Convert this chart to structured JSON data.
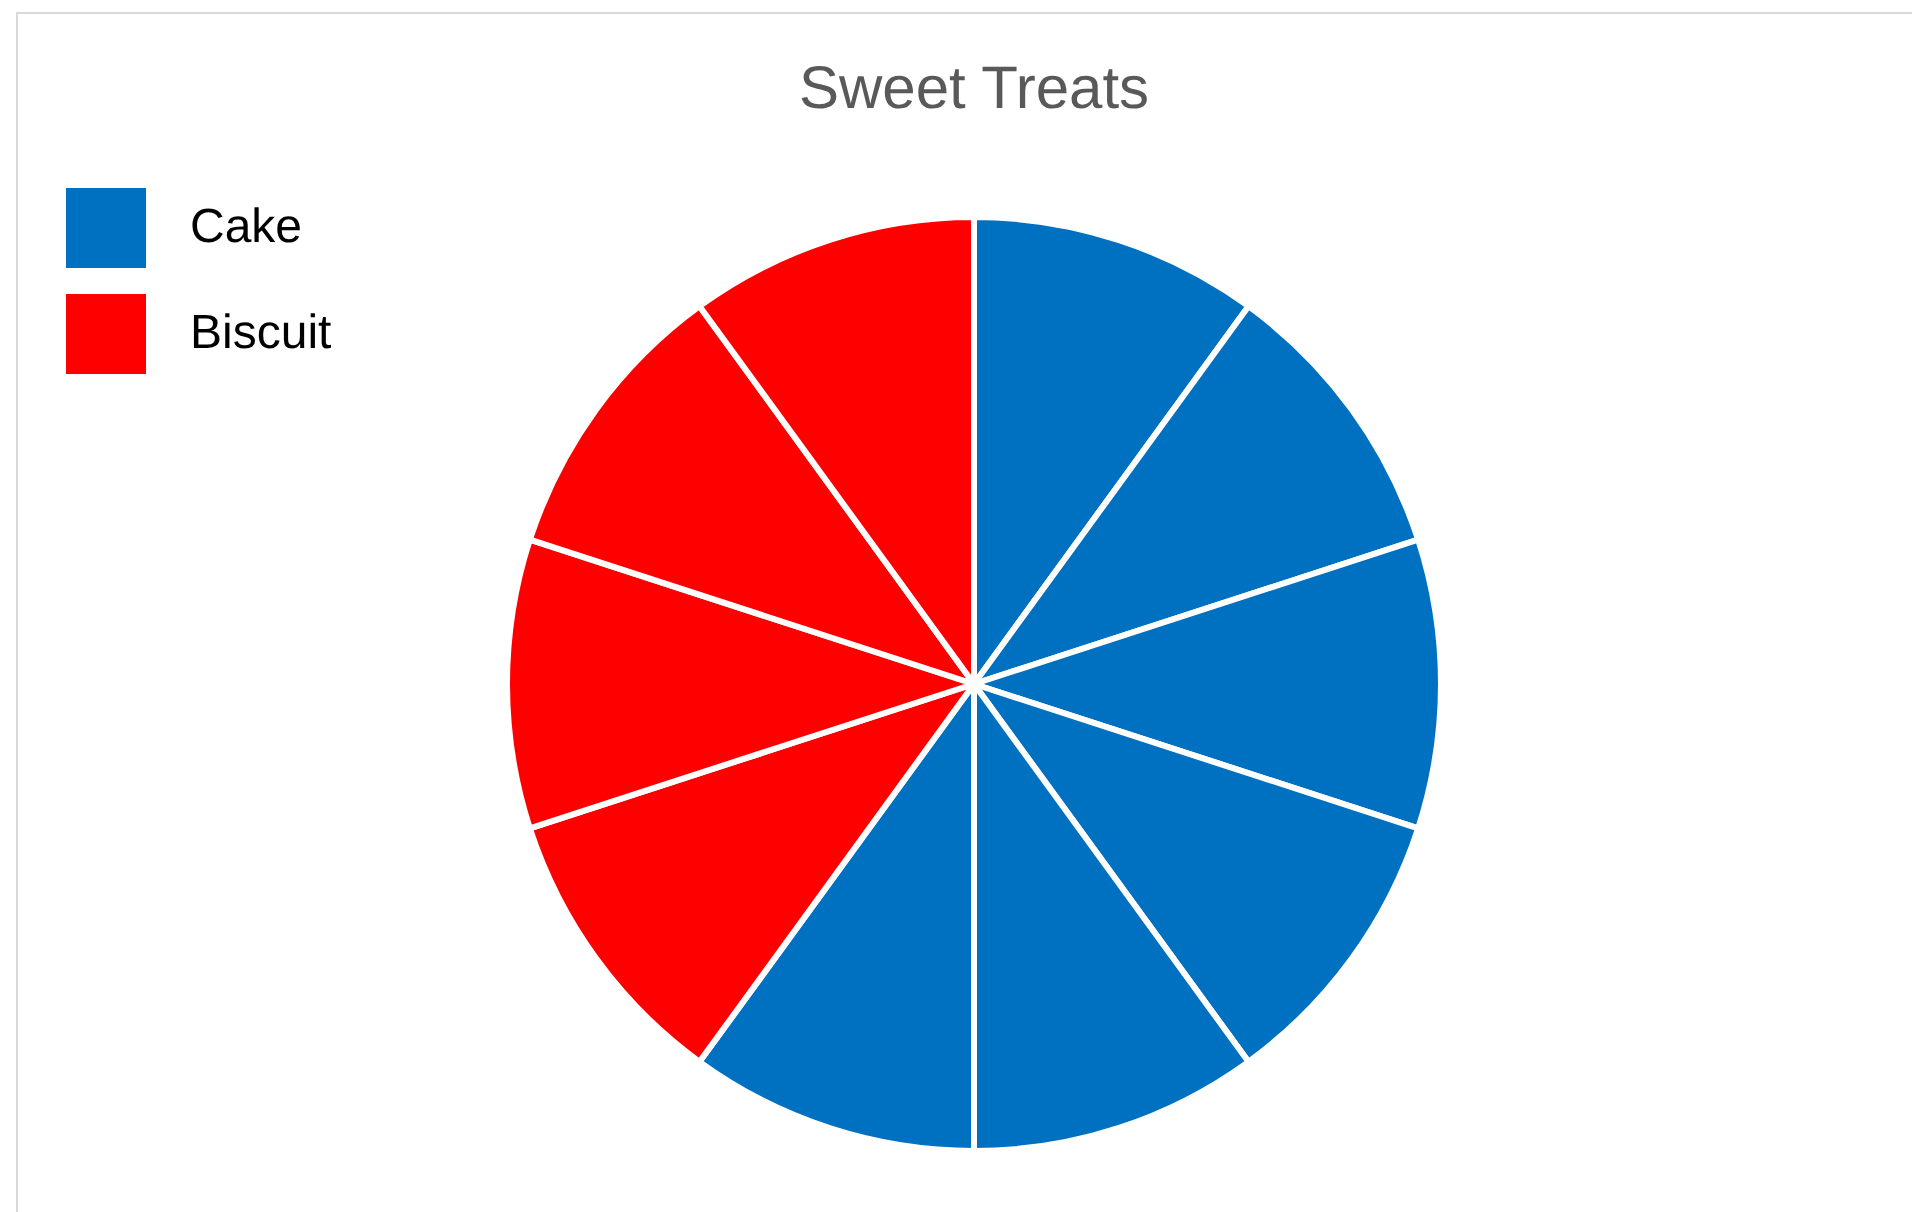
{
  "chart_data": {
    "type": "pie",
    "title": "Sweet Treats",
    "categories": [
      "Cake",
      null,
      null,
      null,
      null,
      null,
      "Biscuit",
      null,
      null,
      null
    ],
    "values": [
      10,
      10,
      10,
      10,
      10,
      10,
      10,
      10,
      10,
      10
    ],
    "colors": [
      "#0070c0",
      "#0070c0",
      "#0070c0",
      "#0070c0",
      "#0070c0",
      "#0070c0",
      "#ff0000",
      "#ff0000",
      "#ff0000",
      "#ff0000"
    ],
    "legend": "top left"
  }
}
